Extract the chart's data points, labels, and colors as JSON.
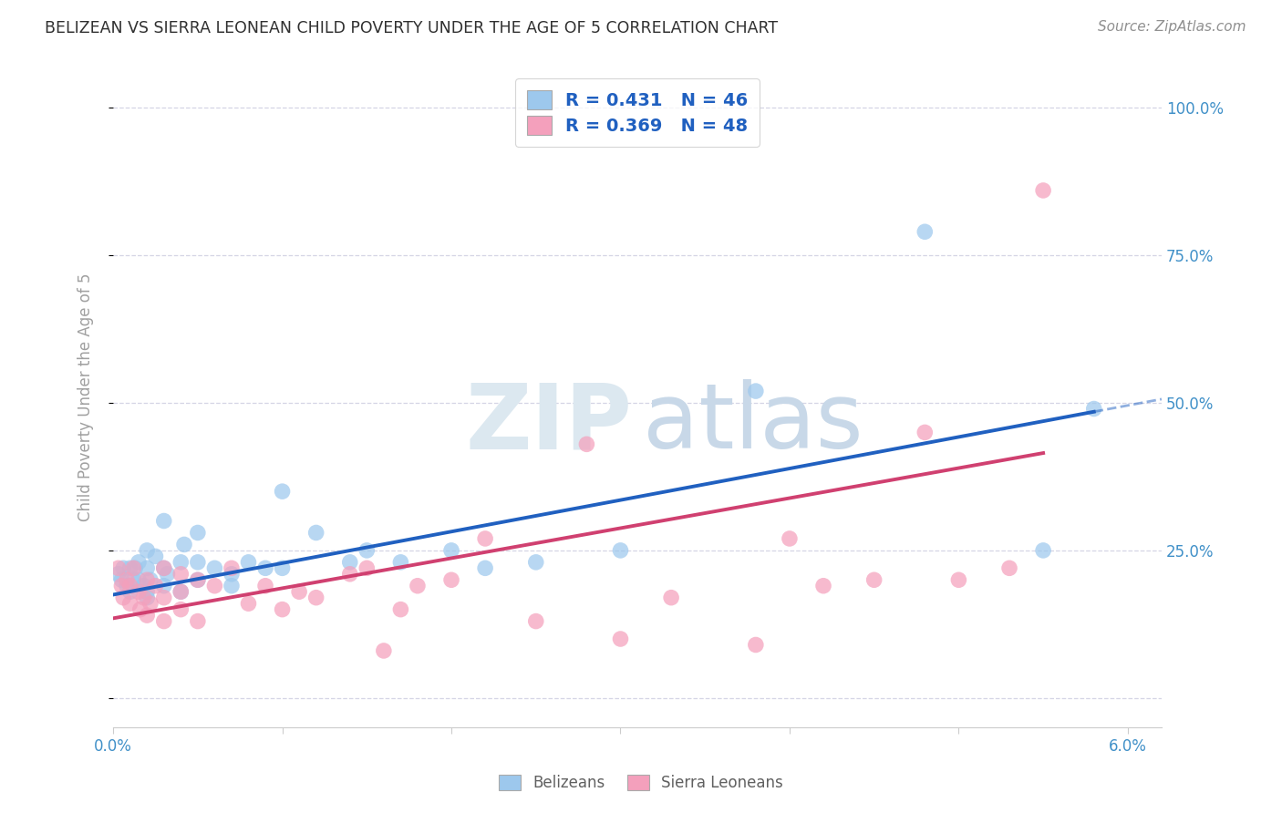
{
  "title": "BELIZEAN VS SIERRA LEONEAN CHILD POVERTY UNDER THE AGE OF 5 CORRELATION CHART",
  "source": "Source: ZipAtlas.com",
  "ylabel": "Child Poverty Under the Age of 5",
  "xlim": [
    0.0,
    0.062
  ],
  "ylim": [
    -0.05,
    1.07
  ],
  "blue_R": 0.431,
  "blue_N": 46,
  "pink_R": 0.369,
  "pink_N": 48,
  "blue_scatter_color": "#9DC8ED",
  "pink_scatter_color": "#F4A0BC",
  "blue_line_color": "#2060C0",
  "pink_line_color": "#D04070",
  "legend_color": "#2060C0",
  "right_axis_color": "#4090C8",
  "bottom_axis_color": "#4090C8",
  "grid_color": "#D5D5E5",
  "title_color": "#303030",
  "source_color": "#909090",
  "ylabel_color": "#A0A0A0",
  "watermark_zip_color": "#DCE8F0",
  "watermark_atlas_color": "#C8D8E8",
  "blue_line_x0": 0.0,
  "blue_line_y0": 0.175,
  "blue_line_x1": 0.058,
  "blue_line_y1": 0.485,
  "pink_line_x0": 0.0,
  "pink_line_y0": 0.135,
  "pink_line_x1": 0.055,
  "pink_line_y1": 0.415,
  "blue_x": [
    0.0003,
    0.0005,
    0.0006,
    0.0008,
    0.001,
    0.001,
    0.0012,
    0.0013,
    0.0015,
    0.0015,
    0.0018,
    0.002,
    0.002,
    0.002,
    0.002,
    0.0022,
    0.0025,
    0.003,
    0.003,
    0.003,
    0.0032,
    0.004,
    0.004,
    0.0042,
    0.005,
    0.005,
    0.005,
    0.006,
    0.007,
    0.007,
    0.008,
    0.009,
    0.01,
    0.01,
    0.012,
    0.014,
    0.015,
    0.017,
    0.02,
    0.022,
    0.025,
    0.03,
    0.038,
    0.048,
    0.055,
    0.058
  ],
  "blue_y": [
    0.21,
    0.2,
    0.22,
    0.19,
    0.18,
    0.22,
    0.2,
    0.22,
    0.23,
    0.2,
    0.19,
    0.18,
    0.22,
    0.25,
    0.17,
    0.2,
    0.24,
    0.22,
    0.19,
    0.3,
    0.21,
    0.18,
    0.23,
    0.26,
    0.2,
    0.23,
    0.28,
    0.22,
    0.21,
    0.19,
    0.23,
    0.22,
    0.22,
    0.35,
    0.28,
    0.23,
    0.25,
    0.23,
    0.25,
    0.22,
    0.23,
    0.25,
    0.52,
    0.79,
    0.25,
    0.49
  ],
  "pink_x": [
    0.0003,
    0.0005,
    0.0006,
    0.0008,
    0.001,
    0.001,
    0.0012,
    0.0015,
    0.0016,
    0.0018,
    0.002,
    0.002,
    0.0022,
    0.0025,
    0.003,
    0.003,
    0.003,
    0.004,
    0.004,
    0.004,
    0.005,
    0.005,
    0.006,
    0.007,
    0.008,
    0.009,
    0.01,
    0.011,
    0.012,
    0.014,
    0.015,
    0.016,
    0.017,
    0.018,
    0.02,
    0.022,
    0.025,
    0.028,
    0.03,
    0.033,
    0.038,
    0.04,
    0.042,
    0.045,
    0.048,
    0.05,
    0.053,
    0.055
  ],
  "pink_y": [
    0.22,
    0.19,
    0.17,
    0.2,
    0.16,
    0.19,
    0.22,
    0.18,
    0.15,
    0.17,
    0.14,
    0.2,
    0.16,
    0.19,
    0.17,
    0.22,
    0.13,
    0.18,
    0.15,
    0.21,
    0.2,
    0.13,
    0.19,
    0.22,
    0.16,
    0.19,
    0.15,
    0.18,
    0.17,
    0.21,
    0.22,
    0.08,
    0.15,
    0.19,
    0.2,
    0.27,
    0.13,
    0.43,
    0.1,
    0.17,
    0.09,
    0.27,
    0.19,
    0.2,
    0.45,
    0.2,
    0.22,
    0.86
  ]
}
